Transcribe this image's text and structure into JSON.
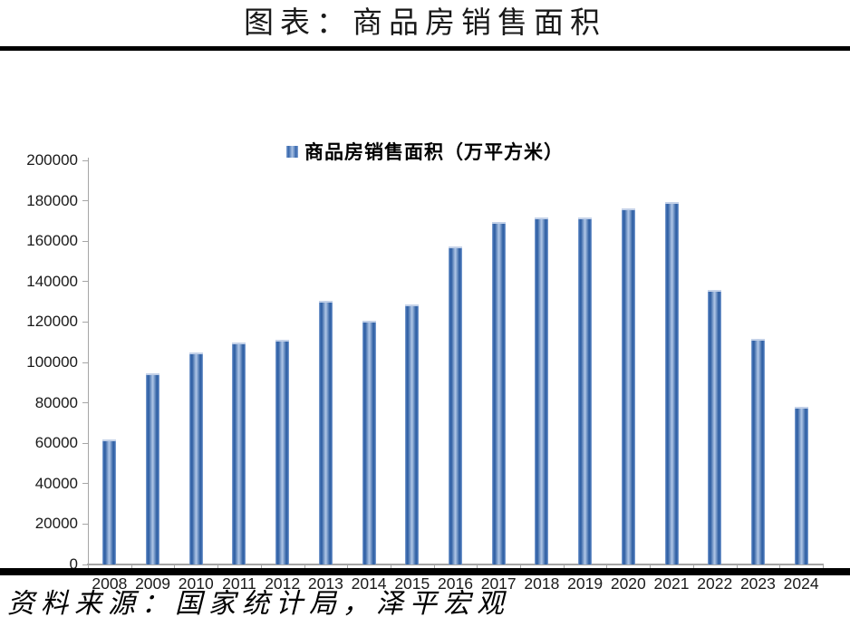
{
  "title": "图表：商品房销售面积",
  "legend": "商品房销售面积（万平方米）",
  "source": "资料来源：国家统计局，泽平宏观",
  "colors": {
    "rule": "#000000",
    "axis": "#a6a6a6",
    "text": "#1a1a1a",
    "bar_edge": "#3565ab",
    "bar_center": "#a9c1e3",
    "bar_outer": "#86a6d4",
    "bar_cap": "#c3d1e8"
  },
  "chart_data": {
    "type": "bar",
    "title": "商品房销售面积",
    "series_name": "商品房销售面积（万平方米）",
    "categories": [
      "2008",
      "2009",
      "2010",
      "2011",
      "2012",
      "2013",
      "2014",
      "2015",
      "2016",
      "2017",
      "2018",
      "2019",
      "2020",
      "2021",
      "2022",
      "2023",
      "2024"
    ],
    "values": [
      62089,
      94755,
      104765,
      109946,
      111304,
      130551,
      120649,
      128495,
      157349,
      169408,
      171654,
      171558,
      176086,
      179433,
      135837,
      111735,
      77930
    ],
    "xlabel": "",
    "ylabel": "",
    "ylim": [
      0,
      200000
    ],
    "ytick_step": 20000,
    "ytick_labels": [
      "0",
      "20000",
      "40000",
      "60000",
      "80000",
      "100000",
      "120000",
      "140000",
      "160000",
      "180000",
      "200000"
    ],
    "grid": false,
    "legend_position": "top-center"
  }
}
